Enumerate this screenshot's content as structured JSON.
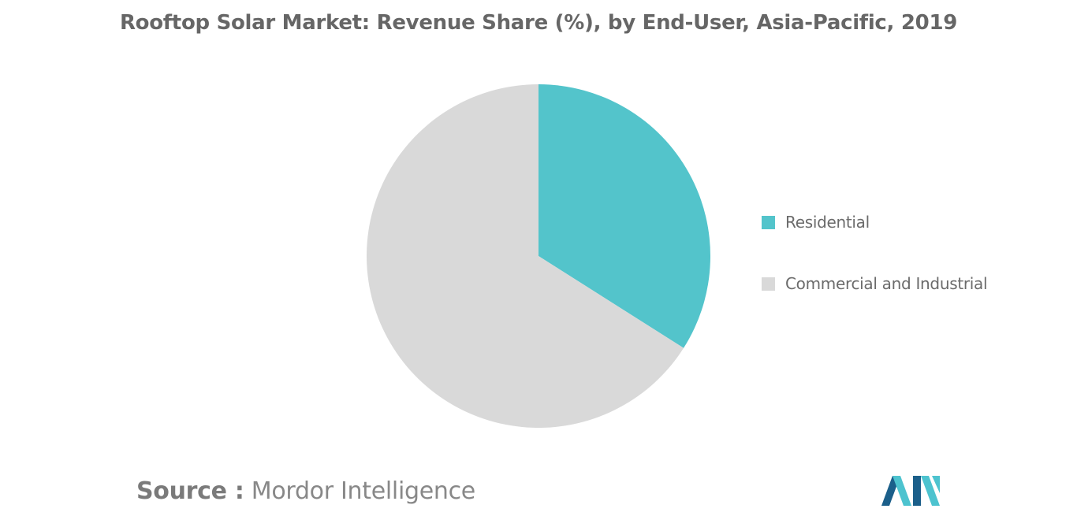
{
  "chart_data": {
    "type": "pie",
    "title": "Rooftop Solar Market: Revenue Share (%), by End-User, Asia-Pacific, 2019",
    "categories": [
      "Residential",
      "Commercial and Industrial"
    ],
    "values": [
      34,
      66
    ],
    "colors": [
      "#53c4cb",
      "#d9d9d9"
    ],
    "start_angle": "12 o'clock",
    "direction": "clockwise",
    "legend_position": "right"
  },
  "source": {
    "label": "Source :",
    "text": "Mordor Intelligence"
  },
  "logo": {
    "icon": "mordor-intelligence-logo",
    "colors": [
      "#1b5f8a",
      "#4dc3cf"
    ]
  }
}
